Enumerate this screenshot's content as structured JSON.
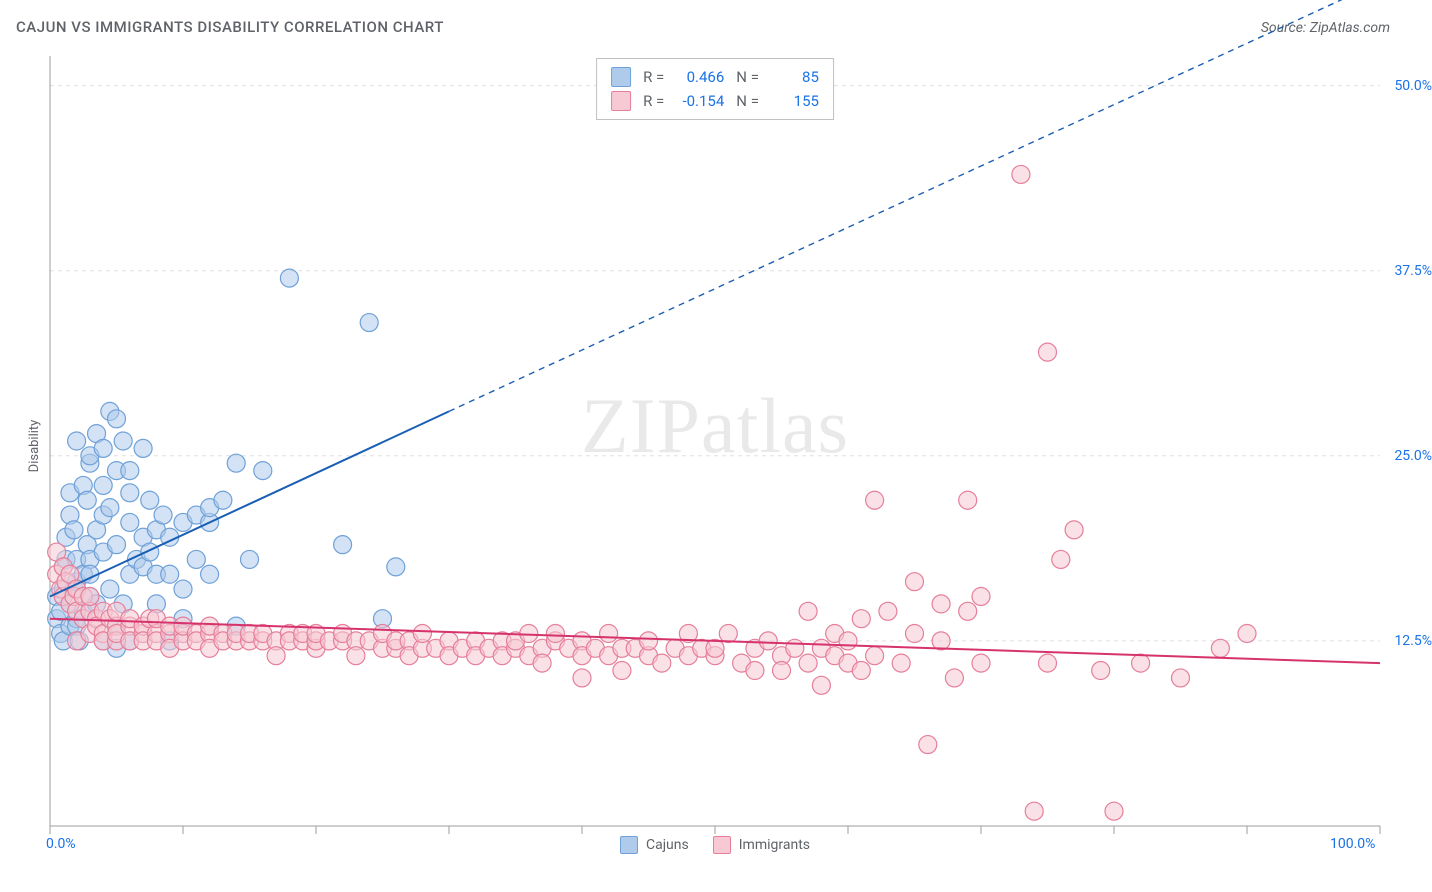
{
  "title": "CAJUN VS IMMIGRANTS DISABILITY CORRELATION CHART",
  "source": "Source: ZipAtlas.com",
  "watermark": "ZIPatlas",
  "ylabel": "Disability",
  "chart": {
    "type": "scatter",
    "xlim": [
      0,
      100
    ],
    "ylim": [
      0,
      52
    ],
    "xtick_positions": [
      0,
      10,
      20,
      30,
      40,
      50,
      60,
      70,
      80,
      90,
      100
    ],
    "xtick_labels_shown": {
      "0": "0.0%",
      "100": "100.0%"
    },
    "ytick_positions": [
      12.5,
      25.0,
      37.5,
      50.0
    ],
    "ytick_labels": [
      "12.5%",
      "25.0%",
      "37.5%",
      "50.0%"
    ],
    "grid_color": "#e0e0e0",
    "grid_dash": "4,4",
    "axis_color": "#9e9e9e",
    "background_color": "#ffffff",
    "series": [
      {
        "name": "Cajuns",
        "fill_color": "#aecbeb",
        "stroke_color": "#6fa1d8",
        "fill_opacity": 0.55,
        "marker_radius": 9,
        "R": "0.466",
        "N": "85",
        "trend": {
          "x1": 0,
          "y1": 15.5,
          "x2": 30,
          "y2": 28,
          "extrap_x2": 100,
          "extrap_y2": 57,
          "color": "#1a5fb4",
          "width": 2
        },
        "points": [
          [
            0.5,
            14
          ],
          [
            0.5,
            15.5
          ],
          [
            0.8,
            13
          ],
          [
            0.8,
            14.5
          ],
          [
            1,
            16
          ],
          [
            1,
            17.5
          ],
          [
            1,
            12.5
          ],
          [
            1.2,
            18
          ],
          [
            1.2,
            19.5
          ],
          [
            1.5,
            15
          ],
          [
            1.5,
            13.5
          ],
          [
            1.5,
            21
          ],
          [
            1.5,
            22.5
          ],
          [
            1.8,
            20
          ],
          [
            1.8,
            16
          ],
          [
            2,
            16.5
          ],
          [
            2,
            18
          ],
          [
            2,
            14
          ],
          [
            2,
            26
          ],
          [
            2,
            13.5
          ],
          [
            2.2,
            12.5
          ],
          [
            2.5,
            23
          ],
          [
            2.5,
            17
          ],
          [
            2.5,
            14.5
          ],
          [
            2.8,
            22
          ],
          [
            2.8,
            19
          ],
          [
            3,
            24.5
          ],
          [
            3,
            18
          ],
          [
            3,
            25
          ],
          [
            3,
            15.5
          ],
          [
            3,
            17
          ],
          [
            3.5,
            20
          ],
          [
            3.5,
            15
          ],
          [
            3.5,
            26.5
          ],
          [
            4,
            23
          ],
          [
            4,
            18.5
          ],
          [
            4,
            21
          ],
          [
            4,
            25.5
          ],
          [
            4,
            12.5
          ],
          [
            4.5,
            21.5
          ],
          [
            4.5,
            28
          ],
          [
            4.5,
            16
          ],
          [
            5,
            24
          ],
          [
            5,
            27.5
          ],
          [
            5,
            19
          ],
          [
            5,
            12
          ],
          [
            5,
            13.5
          ],
          [
            5.5,
            26
          ],
          [
            5.5,
            15
          ],
          [
            6,
            17
          ],
          [
            6,
            24
          ],
          [
            6,
            20.5
          ],
          [
            6,
            22.5
          ],
          [
            6,
            12.5
          ],
          [
            6.5,
            18
          ],
          [
            7,
            17.5
          ],
          [
            7,
            19.5
          ],
          [
            7,
            25.5
          ],
          [
            7.5,
            22
          ],
          [
            7.5,
            18.5
          ],
          [
            8,
            17
          ],
          [
            8,
            20
          ],
          [
            8,
            15
          ],
          [
            8.5,
            21
          ],
          [
            9,
            19.5
          ],
          [
            9,
            17
          ],
          [
            9,
            12.5
          ],
          [
            10,
            20.5
          ],
          [
            10,
            16
          ],
          [
            10,
            14
          ],
          [
            11,
            18
          ],
          [
            11,
            21
          ],
          [
            12,
            20.5
          ],
          [
            12,
            17
          ],
          [
            12,
            21.5
          ],
          [
            13,
            22
          ],
          [
            14,
            13.5
          ],
          [
            14,
            24.5
          ],
          [
            15,
            18
          ],
          [
            16,
            24
          ],
          [
            18,
            37
          ],
          [
            22,
            19
          ],
          [
            24,
            34
          ],
          [
            25,
            14
          ],
          [
            26,
            17.5
          ]
        ]
      },
      {
        "name": "Immigrants",
        "fill_color": "#f6c9d4",
        "stroke_color": "#e57f9a",
        "fill_opacity": 0.55,
        "marker_radius": 9,
        "R": "-0.154",
        "N": "155",
        "trend": {
          "x1": 0,
          "y1": 14,
          "x2": 100,
          "y2": 11,
          "color": "#d6336c",
          "width": 2
        },
        "points": [
          [
            0.5,
            17
          ],
          [
            0.5,
            18.5
          ],
          [
            0.8,
            16
          ],
          [
            1,
            17.5
          ],
          [
            1,
            15.5
          ],
          [
            1.2,
            16.5
          ],
          [
            1.5,
            15
          ],
          [
            1.5,
            17
          ],
          [
            1.8,
            15.5
          ],
          [
            2,
            14.5
          ],
          [
            2,
            16
          ],
          [
            2,
            12.5
          ],
          [
            2.5,
            15.5
          ],
          [
            2.5,
            14
          ],
          [
            3,
            14.5
          ],
          [
            3,
            15.5
          ],
          [
            3,
            13
          ],
          [
            3.5,
            14
          ],
          [
            3.5,
            13.5
          ],
          [
            4,
            14.5
          ],
          [
            4,
            13
          ],
          [
            4,
            12.5
          ],
          [
            4.5,
            14
          ],
          [
            5,
            13.5
          ],
          [
            5,
            14.5
          ],
          [
            5,
            12.5
          ],
          [
            5,
            13
          ],
          [
            6,
            13.5
          ],
          [
            6,
            14
          ],
          [
            6,
            12.5
          ],
          [
            7,
            13
          ],
          [
            7,
            13.5
          ],
          [
            7,
            12.5
          ],
          [
            7.5,
            14
          ],
          [
            8,
            13
          ],
          [
            8,
            12.5
          ],
          [
            8,
            14
          ],
          [
            9,
            13
          ],
          [
            9,
            13.5
          ],
          [
            9,
            12
          ],
          [
            10,
            13
          ],
          [
            10,
            12.5
          ],
          [
            10,
            13.5
          ],
          [
            11,
            13
          ],
          [
            11,
            12.5
          ],
          [
            12,
            13
          ],
          [
            12,
            12
          ],
          [
            12,
            13.5
          ],
          [
            13,
            13
          ],
          [
            13,
            12.5
          ],
          [
            14,
            12.5
          ],
          [
            14,
            13
          ],
          [
            15,
            12.5
          ],
          [
            15,
            13
          ],
          [
            16,
            12.5
          ],
          [
            16,
            13
          ],
          [
            17,
            12.5
          ],
          [
            17,
            11.5
          ],
          [
            18,
            13
          ],
          [
            18,
            12.5
          ],
          [
            19,
            12.5
          ],
          [
            19,
            13
          ],
          [
            20,
            12
          ],
          [
            20,
            12.5
          ],
          [
            20,
            13
          ],
          [
            21,
            12.5
          ],
          [
            22,
            12.5
          ],
          [
            22,
            13
          ],
          [
            23,
            12.5
          ],
          [
            23,
            11.5
          ],
          [
            24,
            12.5
          ],
          [
            25,
            12
          ],
          [
            25,
            13
          ],
          [
            26,
            12
          ],
          [
            26,
            12.5
          ],
          [
            27,
            12.5
          ],
          [
            27,
            11.5
          ],
          [
            28,
            12
          ],
          [
            28,
            13
          ],
          [
            29,
            12
          ],
          [
            30,
            12.5
          ],
          [
            30,
            11.5
          ],
          [
            31,
            12
          ],
          [
            32,
            12.5
          ],
          [
            32,
            11.5
          ],
          [
            33,
            12
          ],
          [
            34,
            12.5
          ],
          [
            34,
            11.5
          ],
          [
            35,
            12
          ],
          [
            35,
            12.5
          ],
          [
            36,
            11.5
          ],
          [
            36,
            13
          ],
          [
            37,
            12
          ],
          [
            37,
            11
          ],
          [
            38,
            12.5
          ],
          [
            38,
            13
          ],
          [
            39,
            12
          ],
          [
            40,
            12.5
          ],
          [
            40,
            11.5
          ],
          [
            40,
            10
          ],
          [
            41,
            12
          ],
          [
            42,
            11.5
          ],
          [
            42,
            13
          ],
          [
            43,
            12
          ],
          [
            43,
            10.5
          ],
          [
            44,
            12
          ],
          [
            45,
            11.5
          ],
          [
            45,
            12.5
          ],
          [
            46,
            11
          ],
          [
            47,
            12
          ],
          [
            48,
            11.5
          ],
          [
            48,
            13
          ],
          [
            49,
            12
          ],
          [
            50,
            11.5
          ],
          [
            50,
            12
          ],
          [
            51,
            13
          ],
          [
            52,
            11
          ],
          [
            53,
            12
          ],
          [
            53,
            10.5
          ],
          [
            54,
            12.5
          ],
          [
            55,
            11.5
          ],
          [
            55,
            10.5
          ],
          [
            56,
            12
          ],
          [
            57,
            11
          ],
          [
            57,
            14.5
          ],
          [
            58,
            12
          ],
          [
            58,
            9.5
          ],
          [
            59,
            11.5
          ],
          [
            59,
            13
          ],
          [
            60,
            11
          ],
          [
            60,
            12.5
          ],
          [
            61,
            10.5
          ],
          [
            61,
            14
          ],
          [
            62,
            22
          ],
          [
            62,
            11.5
          ],
          [
            63,
            14.5
          ],
          [
            64,
            11
          ],
          [
            65,
            13
          ],
          [
            65,
            16.5
          ],
          [
            66,
            5.5
          ],
          [
            67,
            12.5
          ],
          [
            67,
            15
          ],
          [
            68,
            10
          ],
          [
            69,
            14.5
          ],
          [
            69,
            22
          ],
          [
            70,
            11
          ],
          [
            70,
            15.5
          ],
          [
            73,
            44
          ],
          [
            74,
            1
          ],
          [
            75,
            11
          ],
          [
            75,
            32
          ],
          [
            76,
            18
          ],
          [
            77,
            20
          ],
          [
            79,
            10.5
          ],
          [
            80,
            1
          ],
          [
            82,
            11
          ],
          [
            85,
            10
          ],
          [
            88,
            12
          ],
          [
            90,
            13
          ]
        ]
      }
    ],
    "bottom_legend": [
      {
        "label": "Cajuns",
        "fill": "#aecbeb",
        "stroke": "#6fa1d8"
      },
      {
        "label": "Immigrants",
        "fill": "#f6c9d4",
        "stroke": "#e57f9a"
      }
    ]
  }
}
